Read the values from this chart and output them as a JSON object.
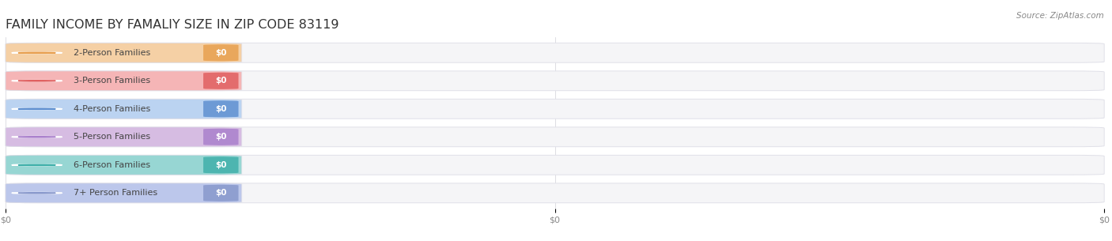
{
  "title": "FAMILY INCOME BY FAMALIY SIZE IN ZIP CODE 83119",
  "source": "Source: ZipAtlas.com",
  "categories": [
    "2-Person Families",
    "3-Person Families",
    "4-Person Families",
    "5-Person Families",
    "6-Person Families",
    "7+ Person Families"
  ],
  "values": [
    0,
    0,
    0,
    0,
    0,
    0
  ],
  "pill_colors": [
    "#f5c48a",
    "#f5a0a0",
    "#a8c8f0",
    "#ccaadc",
    "#78ccc8",
    "#aab8e8"
  ],
  "circle_colors": [
    "#e8a050",
    "#e06060",
    "#6090d0",
    "#aa80cc",
    "#40b0aa",
    "#8898cc"
  ],
  "background_color": "#ffffff",
  "bar_bg_color": "#f5f5f7",
  "bar_border_color": "#e0e0e8",
  "value_label": "$0",
  "xtick_positions": [
    0.0,
    0.5,
    1.0
  ],
  "xlabel_ticks": [
    "$0",
    "$0",
    "$0"
  ],
  "title_fontsize": 11.5,
  "label_fontsize": 8.0,
  "source_fontsize": 7.5
}
